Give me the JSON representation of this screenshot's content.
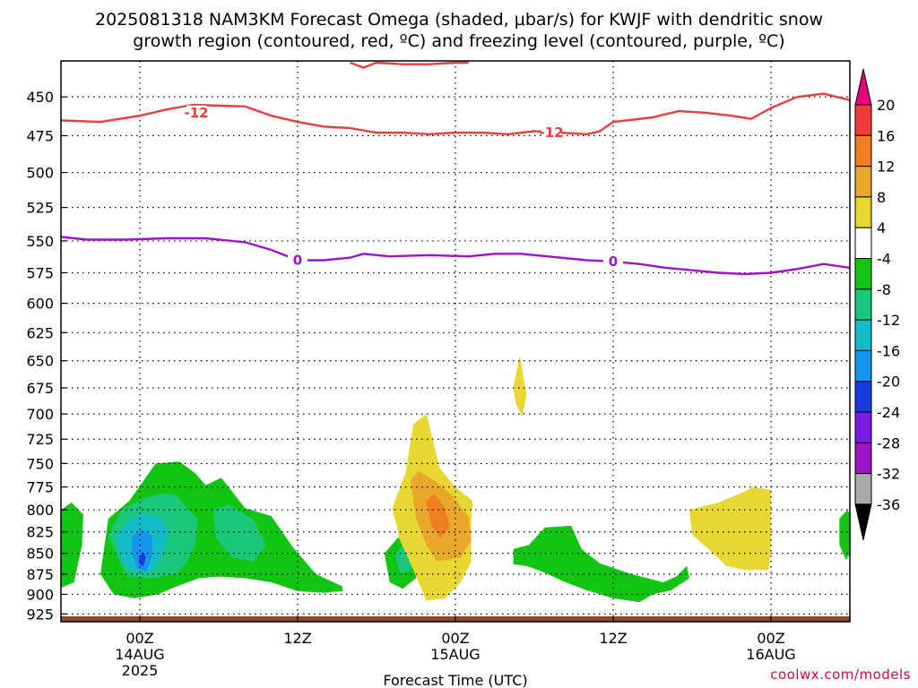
{
  "chart_data": {
    "type": "heatmap",
    "title_line1": "2025081318 NAM3KM Forecast Omega (shaded, µbar/s) for KWJF with dendritic snow",
    "title_line2": "growth region (contoured, red, ºC) and freezing level (contoured, purple, ºC)",
    "xlabel": "Forecast Time (UTC)",
    "ylabel": "",
    "y_scale": "log-pressure (hPa), inverted",
    "y_ticks": [
      450,
      475,
      500,
      525,
      550,
      575,
      600,
      625,
      650,
      675,
      700,
      725,
      750,
      775,
      800,
      825,
      850,
      875,
      900,
      925
    ],
    "x_ticks": [
      {
        "hour": 6,
        "line1": "00Z",
        "line2": "14AUG",
        "line3": "2025"
      },
      {
        "hour": 18,
        "line1": "12Z",
        "line2": "",
        "line3": ""
      },
      {
        "hour": 30,
        "line1": "00Z",
        "line2": "15AUG",
        "line3": ""
      },
      {
        "hour": 42,
        "line1": "12Z",
        "line2": "",
        "line3": ""
      },
      {
        "hour": 54,
        "line1": "00Z",
        "line2": "16AUG",
        "line3": ""
      }
    ],
    "x_range_hours": [
      0,
      60
    ],
    "y_range_hpa": [
      428,
      935
    ],
    "colorbar": {
      "labels": [
        "20",
        "16",
        "12",
        "8",
        "4",
        "-4",
        "-8",
        "-12",
        "-16",
        "-20",
        "-24",
        "-28",
        "-32",
        "-36"
      ],
      "colors": [
        "#e60073",
        "#ee3b3b",
        "#ee7f22",
        "#e9a72b",
        "#e8d730",
        "#ffffff",
        "#13c513",
        "#1bc77b",
        "#14bcc7",
        "#1495ee",
        "#1a3be0",
        "#7a1de0",
        "#a012c8",
        "#a9a9a9",
        "#000000"
      ]
    },
    "contours": [
      {
        "name": "-12",
        "color": "#ee3b3b",
        "labels": [
          {
            "hour": 10.3,
            "p": 460
          },
          {
            "hour": 37.3,
            "p": 473
          }
        ],
        "points": [
          [
            0,
            465
          ],
          [
            3,
            466
          ],
          [
            6,
            462
          ],
          [
            8,
            458
          ],
          [
            10,
            455
          ],
          [
            14,
            456
          ],
          [
            16,
            462
          ],
          [
            18,
            466
          ],
          [
            20,
            469
          ],
          [
            22,
            470
          ],
          [
            24,
            473
          ],
          [
            26,
            473
          ],
          [
            28,
            474
          ],
          [
            30,
            473
          ],
          [
            32,
            473
          ],
          [
            34,
            474
          ],
          [
            36,
            472
          ],
          [
            38,
            473
          ],
          [
            40,
            474
          ],
          [
            41,
            472
          ],
          [
            42,
            466
          ],
          [
            43,
            465
          ],
          [
            45,
            463
          ],
          [
            47,
            459
          ],
          [
            49,
            460
          ],
          [
            51,
            462
          ],
          [
            52.5,
            464
          ],
          [
            54,
            457
          ],
          [
            56,
            450
          ],
          [
            58,
            448
          ],
          [
            60,
            452
          ]
        ]
      },
      {
        "name": "-12",
        "color": "#ee3b3b",
        "labels": [],
        "points": [
          [
            22,
            429
          ],
          [
            23,
            432
          ],
          [
            24,
            429
          ],
          [
            26,
            430
          ],
          [
            28,
            430
          ],
          [
            30,
            429
          ],
          [
            31,
            429
          ]
        ]
      },
      {
        "name": "0",
        "color": "#9b16c8",
        "labels": [
          {
            "hour": 18,
            "p": 565
          },
          {
            "hour": 42,
            "p": 566
          }
        ],
        "points": [
          [
            0,
            547
          ],
          [
            2,
            549
          ],
          [
            5,
            549
          ],
          [
            8,
            548
          ],
          [
            11,
            548
          ],
          [
            14,
            551
          ],
          [
            16,
            557
          ],
          [
            18,
            565
          ],
          [
            20,
            565
          ],
          [
            22,
            563
          ],
          [
            23,
            560
          ],
          [
            25,
            562
          ],
          [
            28,
            561
          ],
          [
            31,
            562
          ],
          [
            33,
            560
          ],
          [
            35,
            560
          ],
          [
            37,
            562
          ],
          [
            40,
            565
          ],
          [
            42,
            566
          ],
          [
            44,
            568
          ],
          [
            46,
            571
          ],
          [
            48,
            573
          ],
          [
            50,
            575
          ],
          [
            52,
            576
          ],
          [
            54,
            575
          ],
          [
            56,
            572
          ],
          [
            58,
            568
          ],
          [
            60,
            571
          ]
        ]
      }
    ],
    "regions": [
      {
        "value": -6,
        "color": "#13c513",
        "points": [
          [
            0,
            800
          ],
          [
            0.8,
            792
          ],
          [
            1.7,
            805
          ],
          [
            1.6,
            840
          ],
          [
            1.0,
            885
          ],
          [
            0,
            892
          ]
        ]
      },
      {
        "value": -6,
        "color": "#13c513",
        "points": [
          [
            3,
            875
          ],
          [
            3.6,
            810
          ],
          [
            5.2,
            790
          ],
          [
            7.2,
            750
          ],
          [
            9,
            748
          ],
          [
            10.2,
            760
          ],
          [
            11,
            773
          ],
          [
            12.2,
            765
          ],
          [
            14,
            798
          ],
          [
            16,
            807
          ],
          [
            17.6,
            842
          ],
          [
            19.4,
            875
          ],
          [
            21.4,
            890
          ],
          [
            21.4,
            896
          ],
          [
            20,
            898
          ],
          [
            18,
            896
          ],
          [
            16,
            885
          ],
          [
            14,
            880
          ],
          [
            12,
            878
          ],
          [
            10.5,
            880
          ],
          [
            8.8,
            890
          ],
          [
            7.4,
            900
          ],
          [
            5.6,
            905
          ],
          [
            4,
            900
          ]
        ]
      },
      {
        "value": -10,
        "color": "#1bc77b",
        "points": [
          [
            3.6,
            830
          ],
          [
            4.6,
            800
          ],
          [
            6.2,
            788
          ],
          [
            7.6,
            782
          ],
          [
            8.8,
            784
          ],
          [
            9.4,
            795
          ],
          [
            10.4,
            810
          ],
          [
            10.2,
            840
          ],
          [
            9.6,
            860
          ],
          [
            8.8,
            875
          ],
          [
            6.8,
            880
          ],
          [
            5,
            878
          ]
        ]
      },
      {
        "value": -10,
        "color": "#1bc77b",
        "points": [
          [
            11.6,
            800
          ],
          [
            12.8,
            795
          ],
          [
            14.6,
            810
          ],
          [
            15.6,
            840
          ],
          [
            14.6,
            860
          ],
          [
            13,
            855
          ],
          [
            11.8,
            832
          ]
        ]
      },
      {
        "value": -14,
        "color": "#14bcc7",
        "points": [
          [
            4.2,
            830
          ],
          [
            5.2,
            810
          ],
          [
            6.2,
            805
          ],
          [
            7.6,
            808
          ],
          [
            8.2,
            825
          ],
          [
            7.8,
            850
          ],
          [
            7,
            872
          ],
          [
            5.6,
            874
          ],
          [
            4.6,
            860
          ]
        ]
      },
      {
        "value": -18,
        "color": "#1495ee",
        "points": [
          [
            5.4,
            830
          ],
          [
            6.2,
            822
          ],
          [
            6.9,
            830
          ],
          [
            7,
            850
          ],
          [
            6.5,
            872
          ],
          [
            5.8,
            868
          ],
          [
            5.4,
            850
          ]
        ]
      },
      {
        "value": -22,
        "color": "#1a3be0",
        "points": [
          [
            5.95,
            855
          ],
          [
            6.25,
            848
          ],
          [
            6.45,
            855
          ],
          [
            6.25,
            866
          ],
          [
            5.95,
            862
          ]
        ]
      },
      {
        "value": -6,
        "color": "#13c513",
        "points": [
          [
            24.6,
            850
          ],
          [
            25.6,
            832
          ],
          [
            27,
            835
          ],
          [
            27.6,
            850
          ],
          [
            27,
            880
          ],
          [
            26,
            893
          ],
          [
            25,
            885
          ]
        ]
      },
      {
        "value": -10,
        "color": "#1bc77b",
        "points": [
          [
            25.4,
            852
          ],
          [
            26,
            840
          ],
          [
            26.8,
            845
          ],
          [
            26.6,
            870
          ],
          [
            25.8,
            875
          ]
        ]
      },
      {
        "value": -6,
        "color": "#13c513",
        "points": [
          [
            34.4,
            845
          ],
          [
            35.6,
            840
          ],
          [
            36.8,
            820
          ],
          [
            38.8,
            818
          ],
          [
            39.6,
            845
          ],
          [
            41,
            862
          ],
          [
            43.4,
            875
          ],
          [
            44.6,
            880
          ],
          [
            45.8,
            885
          ],
          [
            46.8,
            878
          ],
          [
            47.6,
            865
          ],
          [
            47.8,
            880
          ],
          [
            46.4,
            895
          ],
          [
            45,
            900
          ],
          [
            44,
            910
          ],
          [
            42,
            905
          ],
          [
            40,
            895
          ],
          [
            38.4,
            885
          ],
          [
            36.6,
            872
          ],
          [
            35.4,
            865
          ],
          [
            34.4,
            863
          ]
        ]
      },
      {
        "value": -6,
        "color": "#13c513",
        "points": [
          [
            59.2,
            810
          ],
          [
            59.8,
            800
          ],
          [
            60.2,
            810
          ],
          [
            60.4,
            840
          ],
          [
            59.7,
            858
          ],
          [
            59.2,
            840
          ]
        ]
      },
      {
        "value": 6,
        "color": "#e8d730",
        "points": [
          [
            26.2,
            760
          ],
          [
            26.8,
            710
          ],
          [
            27.8,
            700
          ],
          [
            28.8,
            755
          ],
          [
            30,
            775
          ],
          [
            31.3,
            790
          ],
          [
            31.2,
            815
          ],
          [
            31.2,
            860
          ],
          [
            30.4,
            885
          ],
          [
            29.2,
            905
          ],
          [
            27.8,
            908
          ],
          [
            26.8,
            870
          ],
          [
            25.8,
            835
          ],
          [
            25.2,
            798
          ]
        ]
      },
      {
        "value": 10,
        "color": "#e9a72b",
        "points": [
          [
            26.6,
            768
          ],
          [
            27.2,
            758
          ],
          [
            28.6,
            770
          ],
          [
            29.8,
            785
          ],
          [
            31,
            808
          ],
          [
            31.2,
            835
          ],
          [
            30.4,
            855
          ],
          [
            28.6,
            860
          ],
          [
            27.8,
            840
          ],
          [
            27,
            810
          ]
        ]
      },
      {
        "value": 14,
        "color": "#ee7f22",
        "points": [
          [
            27.8,
            790
          ],
          [
            28.4,
            782
          ],
          [
            29.2,
            798
          ],
          [
            29.6,
            820
          ],
          [
            28.8,
            832
          ],
          [
            28.2,
            818
          ],
          [
            27.9,
            800
          ]
        ]
      },
      {
        "value": 6,
        "color": "#e8d730",
        "points": [
          [
            34.4,
            675
          ],
          [
            34.9,
            645
          ],
          [
            35.4,
            682
          ],
          [
            35.1,
            703
          ],
          [
            34.6,
            690
          ]
        ]
      },
      {
        "value": 6,
        "color": "#e8d730",
        "points": [
          [
            52,
            780
          ],
          [
            52.6,
            775
          ],
          [
            54,
            778
          ],
          [
            54,
            845
          ],
          [
            53.8,
            870
          ],
          [
            52,
            870
          ],
          [
            50.6,
            865
          ],
          [
            49.6,
            850
          ],
          [
            48,
            828
          ],
          [
            47.8,
            800
          ],
          [
            50,
            792
          ]
        ]
      }
    ]
  },
  "ground_color": "#8b4a2b",
  "credit": "coolwx.com/models"
}
